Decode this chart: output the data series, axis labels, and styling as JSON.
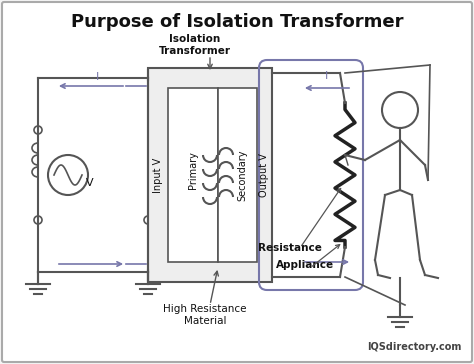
{
  "title": "Purpose of Isolation Transformer",
  "title_fontsize": 13,
  "background_color": "#f5f5f5",
  "border_color": "#aaaaaa",
  "line_color": "#555555",
  "blue_color": "#7777aa",
  "text_color": "#111111",
  "watermark": "IQSdirectory.com",
  "labels": {
    "isolation_transformer": "Isolation\nTransformer",
    "primary": "Primary",
    "secondary": "Secondary",
    "input_v": "Input V",
    "output_v": "Output V",
    "current_i_left": "I",
    "current_i_right": "I",
    "voltage_v": "V",
    "high_resistance": "High Resistance\nMaterial",
    "resistance": "Resistance",
    "appliance": "Appliance"
  }
}
